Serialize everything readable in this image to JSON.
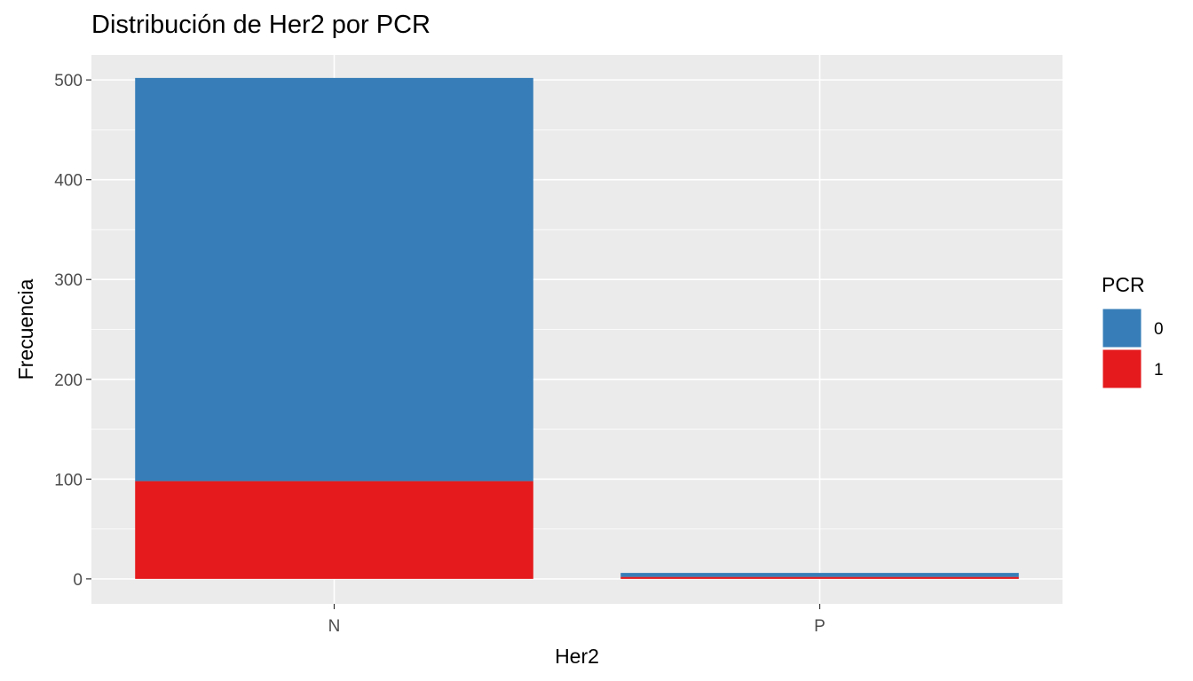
{
  "chart_data": {
    "type": "bar",
    "stacked": true,
    "title": "Distribución de Her2 por PCR",
    "xlabel": "Her2",
    "ylabel": "Frecuencia",
    "categories": [
      "N",
      "P"
    ],
    "series": [
      {
        "name": "0",
        "values": [
          404,
          4
        ],
        "color": "#377EB8"
      },
      {
        "name": "1",
        "values": [
          98,
          2
        ],
        "color": "#E41A1C"
      }
    ],
    "ylim": [
      -25,
      525
    ],
    "yticks": [
      0,
      100,
      200,
      300,
      400,
      500
    ],
    "grid": true,
    "panel_background": "#EBEBEB",
    "legend": {
      "title": "PCR",
      "position": "right",
      "entries": [
        "0",
        "1"
      ]
    }
  }
}
